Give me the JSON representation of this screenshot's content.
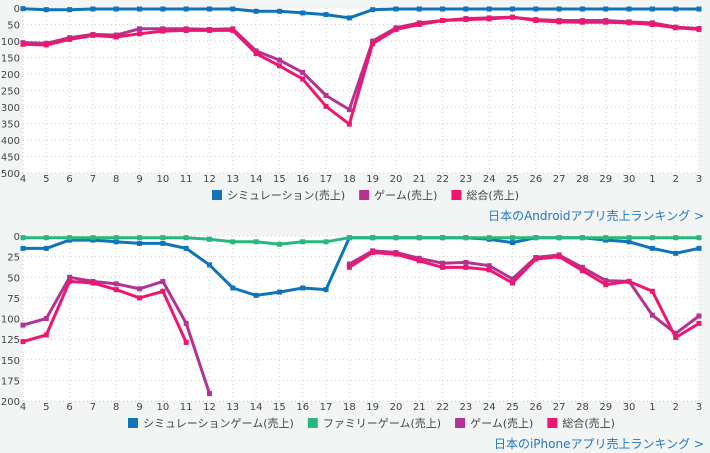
{
  "links": {
    "android": "日本のAndroidアプリ売上ランキング >",
    "iphone": "日本のiPhoneアプリ売上ランキング >"
  },
  "chart_data": [
    {
      "type": "line",
      "id": "android",
      "inverted_y": true,
      "ylim": [
        500,
        0
      ],
      "yticks": [
        0,
        50,
        100,
        150,
        200,
        250,
        300,
        350,
        400,
        450,
        500
      ],
      "categories": [
        "4",
        "5",
        "6",
        "7",
        "8",
        "9",
        "10",
        "11",
        "12",
        "13",
        "14",
        "15",
        "16",
        "17",
        "18",
        "19",
        "20",
        "21",
        "22",
        "23",
        "24",
        "25",
        "26",
        "27",
        "28",
        "29",
        "30",
        "1",
        "2",
        "3"
      ],
      "grid": true,
      "legend_position": "bottom",
      "series": [
        {
          "name": "シミュレーション(売上)",
          "color": "#0f75b8",
          "values": [
            2,
            5,
            5,
            3,
            3,
            3,
            3,
            3,
            3,
            3,
            10,
            10,
            15,
            20,
            30,
            5,
            3,
            3,
            3,
            3,
            3,
            3,
            3,
            3,
            3,
            3,
            3,
            3,
            3,
            3
          ]
        },
        {
          "name": "ゲーム(売上)",
          "color": "#b23393",
          "values": [
            105,
            107,
            90,
            80,
            82,
            63,
            63,
            63,
            65,
            63,
            130,
            158,
            195,
            265,
            308,
            100,
            60,
            45,
            38,
            32,
            30,
            28,
            35,
            38,
            38,
            38,
            42,
            45,
            58,
            62
          ]
        },
        {
          "name": "総合(売上)",
          "color": "#f0166e",
          "values": [
            110,
            112,
            95,
            83,
            88,
            78,
            70,
            68,
            68,
            68,
            138,
            175,
            215,
            298,
            352,
            108,
            65,
            50,
            38,
            35,
            33,
            28,
            38,
            42,
            43,
            43,
            45,
            50,
            60,
            65
          ]
        }
      ]
    },
    {
      "type": "line",
      "id": "iphone",
      "inverted_y": true,
      "ylim": [
        200,
        0
      ],
      "yticks": [
        0,
        25,
        50,
        75,
        100,
        125,
        150,
        175,
        200
      ],
      "categories": [
        "4",
        "5",
        "6",
        "7",
        "8",
        "9",
        "10",
        "11",
        "12",
        "13",
        "14",
        "15",
        "16",
        "17",
        "18",
        "19",
        "20",
        "21",
        "22",
        "23",
        "24",
        "25",
        "26",
        "27",
        "28",
        "29",
        "30",
        "1",
        "2",
        "3"
      ],
      "grid": true,
      "legend_position": "bottom",
      "series": [
        {
          "name": "シミュレーションゲーム(売上)",
          "color": "#0f75b8",
          "values": [
            15,
            15,
            5,
            5,
            7,
            9,
            9,
            15,
            35,
            63,
            72,
            68,
            63,
            65,
            2,
            2,
            2,
            2,
            2,
            2,
            4,
            8,
            2,
            2,
            2,
            5,
            7,
            15,
            21,
            15
          ]
        },
        {
          "name": "ファミリーゲーム(売上)",
          "color": "#27b77f",
          "values": [
            2,
            2,
            2,
            2,
            2,
            2,
            2,
            2,
            4,
            7,
            7,
            10,
            7,
            7,
            2,
            2,
            2,
            2,
            2,
            2,
            2,
            2,
            2,
            2,
            2,
            2,
            2,
            2,
            2,
            2
          ]
        },
        {
          "name": "ゲーム(売上)",
          "color": "#b23393",
          "values": [
            108,
            100,
            50,
            55,
            58,
            64,
            55,
            106,
            191,
            null,
            null,
            null,
            null,
            null,
            34,
            18,
            20,
            27,
            33,
            32,
            36,
            52,
            26,
            23,
            38,
            54,
            55,
            96,
            118,
            97
          ]
        },
        {
          "name": "総合(売上)",
          "color": "#f0166e",
          "values": [
            128,
            120,
            55,
            57,
            65,
            75,
            67,
            129,
            null,
            null,
            null,
            null,
            null,
            null,
            38,
            20,
            22,
            30,
            38,
            38,
            41,
            57,
            28,
            25,
            42,
            59,
            55,
            67,
            123,
            106
          ]
        }
      ]
    }
  ]
}
